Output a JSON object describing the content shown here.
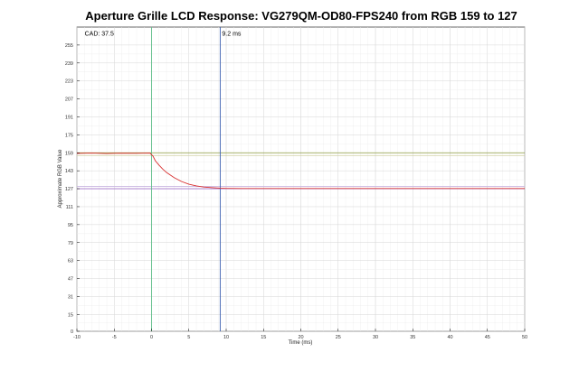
{
  "chart_data": {
    "type": "line",
    "title": "Aperture Grille LCD Response: VG279QM-OD80-FPS240 from RGB 159 to 127",
    "xlabel": "Time (ms)",
    "ylabel": "Approximate RGB Value",
    "xlim": [
      -10,
      50
    ],
    "ylim": [
      0,
      271
    ],
    "xticks": [
      -10,
      -5,
      0,
      5,
      10,
      15,
      20,
      25,
      30,
      35,
      40,
      45,
      50
    ],
    "yticks": [
      0,
      15,
      31,
      47,
      63,
      79,
      95,
      111,
      127,
      143,
      159,
      175,
      191,
      207,
      223,
      239,
      255
    ],
    "grid": true,
    "annotations": [
      {
        "text": "CAD: 37.5",
        "x": -9.2,
        "y": 265
      },
      {
        "text": "9.2 ms",
        "x": 9.2,
        "y": 265
      }
    ],
    "vlines": [
      {
        "x": 0,
        "color": "#5fbf8a"
      },
      {
        "x": 9.2,
        "color": "#3a5fb0"
      }
    ],
    "hlines": [
      {
        "y": 159,
        "color": "#8a9a3a"
      },
      {
        "y": 156.6,
        "color": "#cfcfa0"
      },
      {
        "y": 127,
        "color": "#a070c8"
      },
      {
        "y": 129,
        "color": "#c8b4e0"
      }
    ],
    "series": [
      {
        "color": "#d83030",
        "x": [
          -10,
          -8,
          -6,
          -4,
          -2,
          -0.2,
          0.2,
          0.5,
          1,
          1.5,
          2,
          3,
          4,
          5,
          6,
          7,
          8,
          9.2,
          10,
          12,
          15,
          20,
          25,
          30,
          35,
          40,
          45,
          50
        ],
        "y": [
          158.5,
          158.8,
          158.4,
          158.7,
          158.6,
          158.8,
          156,
          152,
          148,
          144.5,
          141.5,
          137,
          133.5,
          131,
          129.5,
          128.5,
          128,
          127.5,
          127.3,
          127.2,
          127.2,
          127.2,
          127.2,
          127.2,
          127.2,
          127.2,
          127.2,
          127.2
        ]
      }
    ]
  }
}
